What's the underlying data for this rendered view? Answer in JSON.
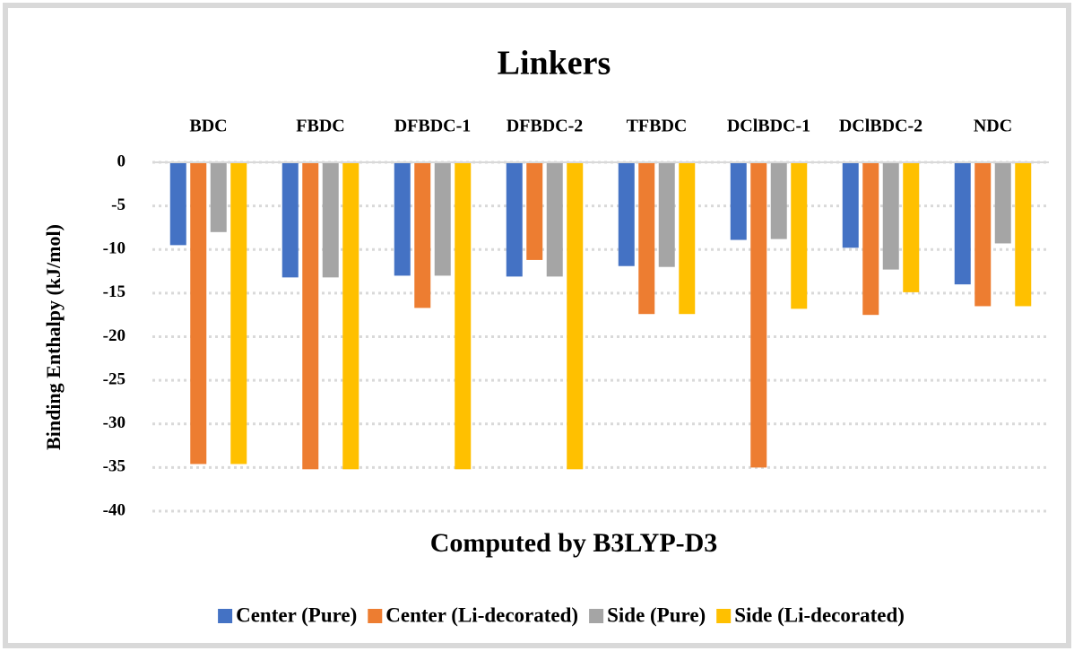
{
  "chart_data": {
    "type": "bar",
    "title": "Linkers",
    "x_label": "Computed by B3LYP-D3",
    "y_label": "Binding Enthalpy (kJ/mol)",
    "categories": [
      "BDC",
      "FBDC",
      "DFBDC-1",
      "DFBDC-2",
      "TFBDC",
      "DClBDC-1",
      "DClBDC-2",
      "NDC"
    ],
    "series": [
      {
        "name": "Center (Pure)",
        "color": "#4472c4",
        "values": [
          -9.5,
          -13.2,
          -13.0,
          -13.1,
          -11.9,
          -8.9,
          -9.8,
          -14.0
        ]
      },
      {
        "name": "Center (Li-decorated)",
        "color": "#ed7d31",
        "values": [
          -34.6,
          -35.2,
          -16.7,
          -11.2,
          -17.4,
          -35.0,
          -17.5,
          -16.5
        ]
      },
      {
        "name": "Side (Pure)",
        "color": "#a5a5a5",
        "values": [
          -8.0,
          -13.2,
          -13.0,
          -13.1,
          -12.0,
          -8.8,
          -12.3,
          -9.3
        ]
      },
      {
        "name": "Side (Li-decorated)",
        "color": "#ffc000",
        "values": [
          -34.6,
          -35.2,
          -35.2,
          -35.2,
          -17.4,
          -16.8,
          -14.9,
          -16.5
        ]
      }
    ],
    "ylim": [
      -40,
      0
    ],
    "yticks": [
      0,
      -5,
      -10,
      -15,
      -20,
      -25,
      -30,
      -35,
      -40
    ],
    "grid": true,
    "legend": "bottom"
  }
}
